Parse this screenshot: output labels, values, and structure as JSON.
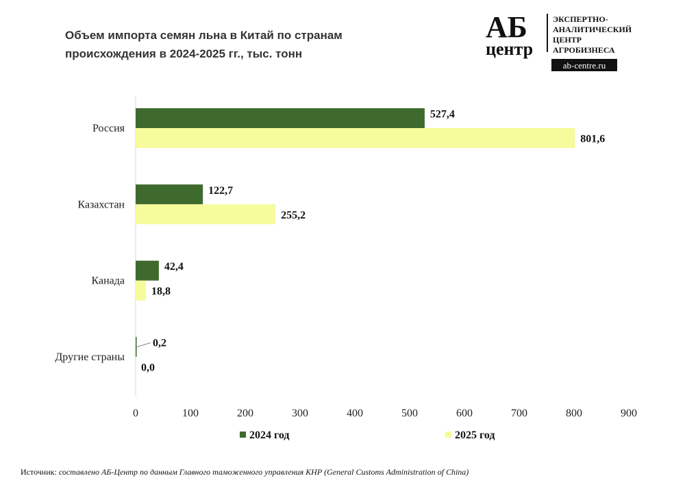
{
  "title": "Объем импорта семян льна в Китай по странам происхождения в 2024-2025 гг., тыс. тонн",
  "logo": {
    "mark_top": "АБ",
    "mark_bottom": "центр",
    "text_lines": [
      "ЭКСПЕРТНО-",
      "АНАЛИТИЧЕСКИЙ",
      "ЦЕНТР",
      "АГРОБИЗНЕСА"
    ],
    "url": "ab-centre.ru"
  },
  "source": {
    "label": "Источник:",
    "text": " составлено АБ-Центр по данным Главного таможенного управления КНР (General Customs Administration of China)"
  },
  "chart_data": {
    "type": "bar",
    "orientation": "horizontal",
    "title": "Объем импорта семян льна в Китай по странам происхождения в 2024-2025 гг., тыс. тонн",
    "categories": [
      "Россия",
      "Казахстан",
      "Канада",
      "Другие страны"
    ],
    "series": [
      {
        "name": "2024 год",
        "values": [
          527.4,
          122.7,
          42.4,
          0.2
        ],
        "labels": [
          "527,4",
          "122,7",
          "42,4",
          "0,2"
        ],
        "color": "#3f6a2e"
      },
      {
        "name": "2025 год",
        "values": [
          801.6,
          255.2,
          18.8,
          0.0
        ],
        "labels": [
          "801,6",
          "255,2",
          "18,8",
          "0,0"
        ],
        "color": "#f6fb9c"
      }
    ],
    "xlim": [
      0,
      900
    ],
    "xticks": [
      "0",
      "100",
      "200",
      "300",
      "400",
      "500",
      "600",
      "700",
      "800",
      "900"
    ],
    "grid": false,
    "legend": "bottom"
  }
}
